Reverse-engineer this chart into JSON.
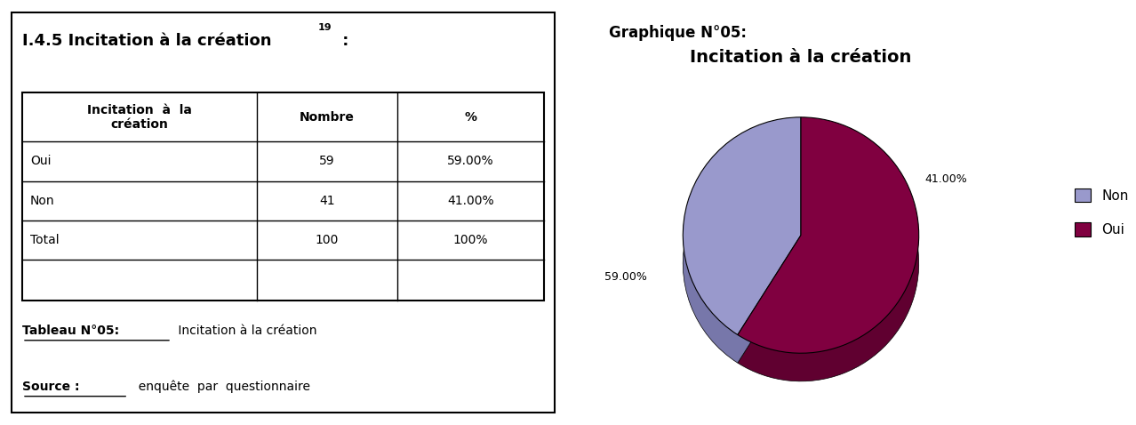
{
  "graphique_label": "Graphique N°05:",
  "pie_title": "Incitation à la création",
  "values": [
    41,
    59
  ],
  "colors_pie": [
    "#9999CC",
    "#800040"
  ],
  "colors_3d_side": [
    "#7777AA",
    "#600030"
  ],
  "table_header_col1": "Incitation  à  la\ncréation",
  "table_header_col2": "Nombre",
  "table_header_col3": "%",
  "table_rows": [
    [
      "Oui",
      "59",
      "59.00%"
    ],
    [
      "Non",
      "41",
      "41.00%"
    ],
    [
      "Total",
      "100",
      "100%"
    ]
  ],
  "bg_color": "#ffffff",
  "legend_labels": [
    "Non",
    "Oui"
  ],
  "legend_colors": [
    "#9999CC",
    "#800040"
  ]
}
